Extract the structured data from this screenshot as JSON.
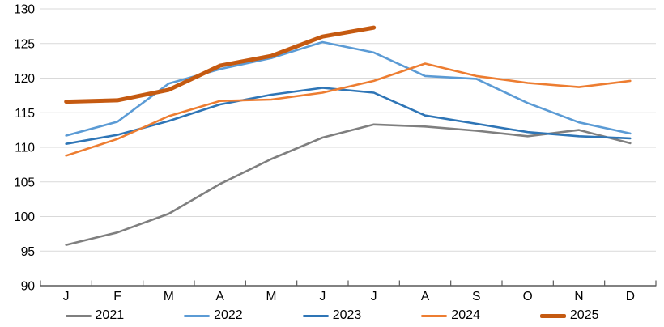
{
  "chart_data": {
    "type": "line",
    "title": "",
    "xlabel": "",
    "ylabel": "",
    "categories": [
      "J",
      "F",
      "M",
      "A",
      "M",
      "J",
      "J",
      "A",
      "S",
      "O",
      "N",
      "D"
    ],
    "y_axis": {
      "min": 90,
      "max": 130,
      "step": 5
    },
    "grid": true,
    "legend_position": "bottom",
    "colors": {
      "gridline": "#d9d9d9",
      "axis": "#595959",
      "tick_label": "#000000"
    },
    "series": [
      {
        "name": "2021",
        "color": "#7f7f7f",
        "width": 2.6,
        "values": [
          95.9,
          97.7,
          100.4,
          104.7,
          108.3,
          111.4,
          113.3,
          113.0,
          112.4,
          111.6,
          112.5,
          110.6
        ]
      },
      {
        "name": "2022",
        "color": "#5b9bd5",
        "width": 2.6,
        "values": [
          111.7,
          113.7,
          119.2,
          121.3,
          122.9,
          125.2,
          123.7,
          120.3,
          119.9,
          116.4,
          113.6,
          112.0
        ]
      },
      {
        "name": "2023",
        "color": "#2e75b6",
        "width": 2.6,
        "values": [
          110.5,
          111.8,
          113.8,
          116.2,
          117.6,
          118.6,
          117.9,
          114.6,
          113.4,
          112.2,
          111.6,
          111.3
        ]
      },
      {
        "name": "2024",
        "color": "#ed7d31",
        "width": 2.6,
        "values": [
          108.8,
          111.2,
          114.5,
          116.7,
          116.9,
          117.9,
          119.6,
          122.1,
          120.3,
          119.3,
          118.7,
          119.6
        ]
      },
      {
        "name": "2025",
        "color": "#c55a11",
        "width": 5,
        "values": [
          116.6,
          116.8,
          118.3,
          121.8,
          123.2,
          126.0,
          127.3
        ]
      }
    ]
  }
}
